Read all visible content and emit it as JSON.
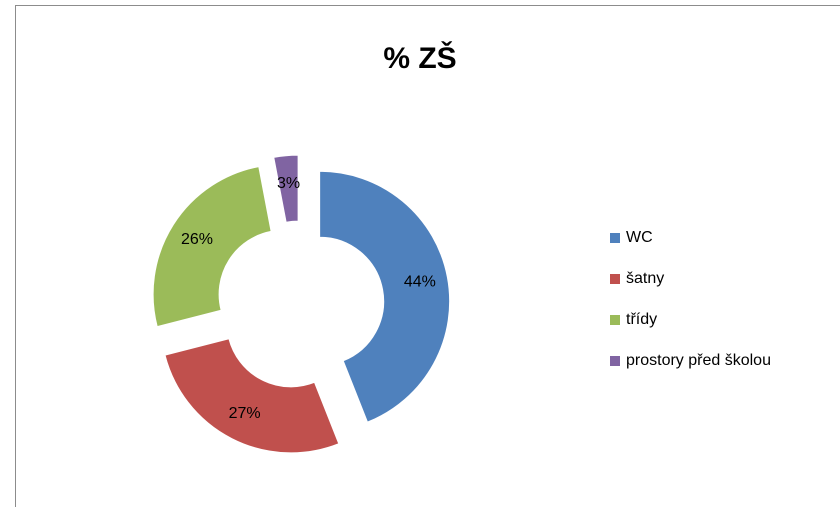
{
  "chart_data": {
    "type": "donut",
    "title": "% ZŠ",
    "categories": [
      "WC",
      "šatny",
      "třídy",
      "prostory před školou"
    ],
    "values": [
      44,
      27,
      26,
      3
    ],
    "value_labels": [
      "44%",
      "27%",
      "26%",
      "3%"
    ],
    "colors": [
      "#4f81bd",
      "#c0504d",
      "#9bbb59",
      "#8064a2"
    ],
    "legend": "right"
  }
}
